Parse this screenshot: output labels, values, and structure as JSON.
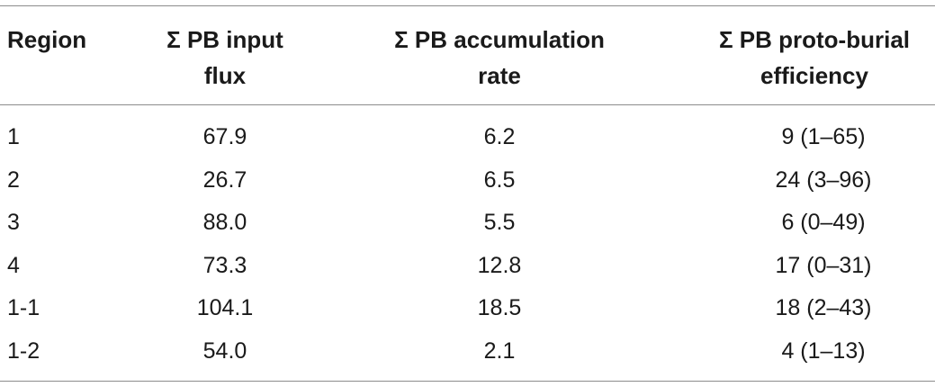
{
  "table": {
    "headers": {
      "region": [
        "Region"
      ],
      "flux": [
        "Σ PB input",
        "flux"
      ],
      "rate": [
        "Σ PB accumulation",
        "rate"
      ],
      "efficiency": [
        "Σ PB proto-burial",
        "efficiency"
      ]
    },
    "rows": [
      {
        "region": "1",
        "flux": "67.9",
        "rate": "6.2",
        "efficiency": "9 (1–65)"
      },
      {
        "region": "2",
        "flux": "26.7",
        "rate": "6.5",
        "efficiency": "24 (3–96)"
      },
      {
        "region": "3",
        "flux": "88.0",
        "rate": "5.5",
        "efficiency": "6 (0–49)"
      },
      {
        "region": "4",
        "flux": "73.3",
        "rate": "12.8",
        "efficiency": "17 (0–31)"
      },
      {
        "region": "1-1",
        "flux": "104.1",
        "rate": "18.5",
        "efficiency": "18 (2–43)"
      },
      {
        "region": "1-2",
        "flux": "54.0",
        "rate": "2.1",
        "efficiency": "4 (1–13)"
      }
    ]
  }
}
